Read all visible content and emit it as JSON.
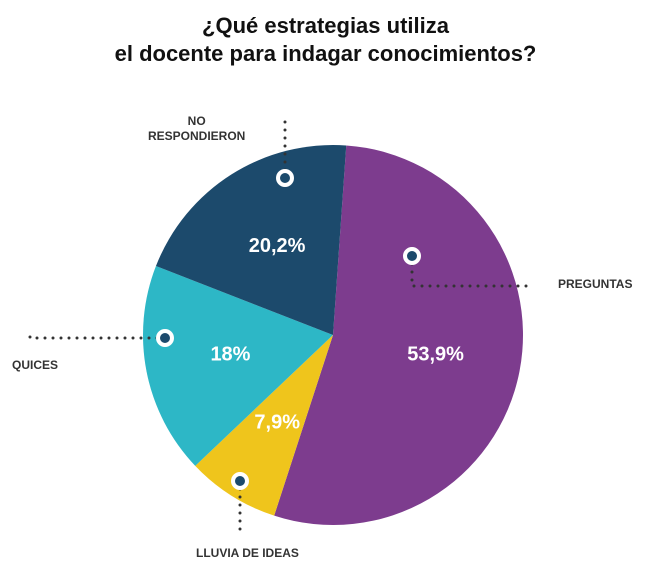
{
  "chart_data": {
    "type": "pie",
    "title": "¿Qué estrategias utiliza\nel docente para indagar conocimientos?",
    "categories": [
      "PREGUNTAS",
      "LLUVIA DE IDEAS",
      "QUICES",
      "NO\nRESPONDIERON"
    ],
    "values": [
      53.9,
      7.9,
      18,
      20.2
    ],
    "value_labels": [
      "53,9%",
      "7,9%",
      "18%",
      "20,2%"
    ],
    "colors": [
      "#7d3c8e",
      "#efc51c",
      "#2db7c6",
      "#1c4a6c"
    ]
  }
}
